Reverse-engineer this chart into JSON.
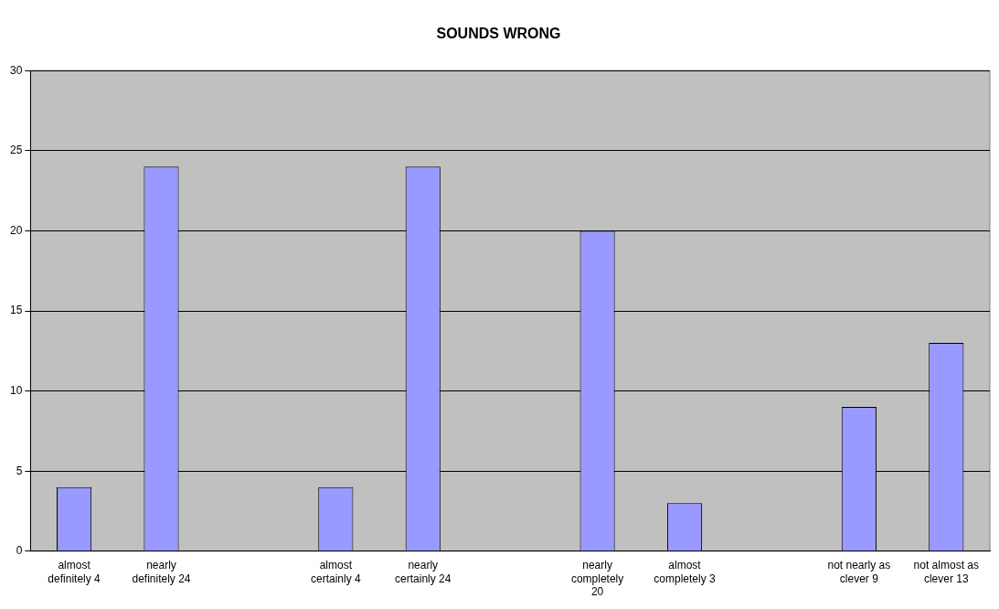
{
  "chart_data": {
    "type": "bar",
    "title": "SOUNDS WRONG",
    "categories": [
      "almost definitely 4",
      "nearly definitely 24",
      null,
      "almost certainly 4",
      "nearly certainly 24",
      null,
      "nearly completely 20",
      "almost completely 3",
      null,
      "not nearly as clever 9",
      "not almost as clever 13"
    ],
    "values": [
      4,
      24,
      null,
      4,
      24,
      null,
      20,
      3,
      null,
      9,
      13
    ],
    "color": "#9999ff",
    "ylim": [
      0,
      30
    ],
    "yticks": [
      0,
      5,
      10,
      15,
      20,
      25,
      30
    ],
    "grid": "y",
    "legend": false
  }
}
